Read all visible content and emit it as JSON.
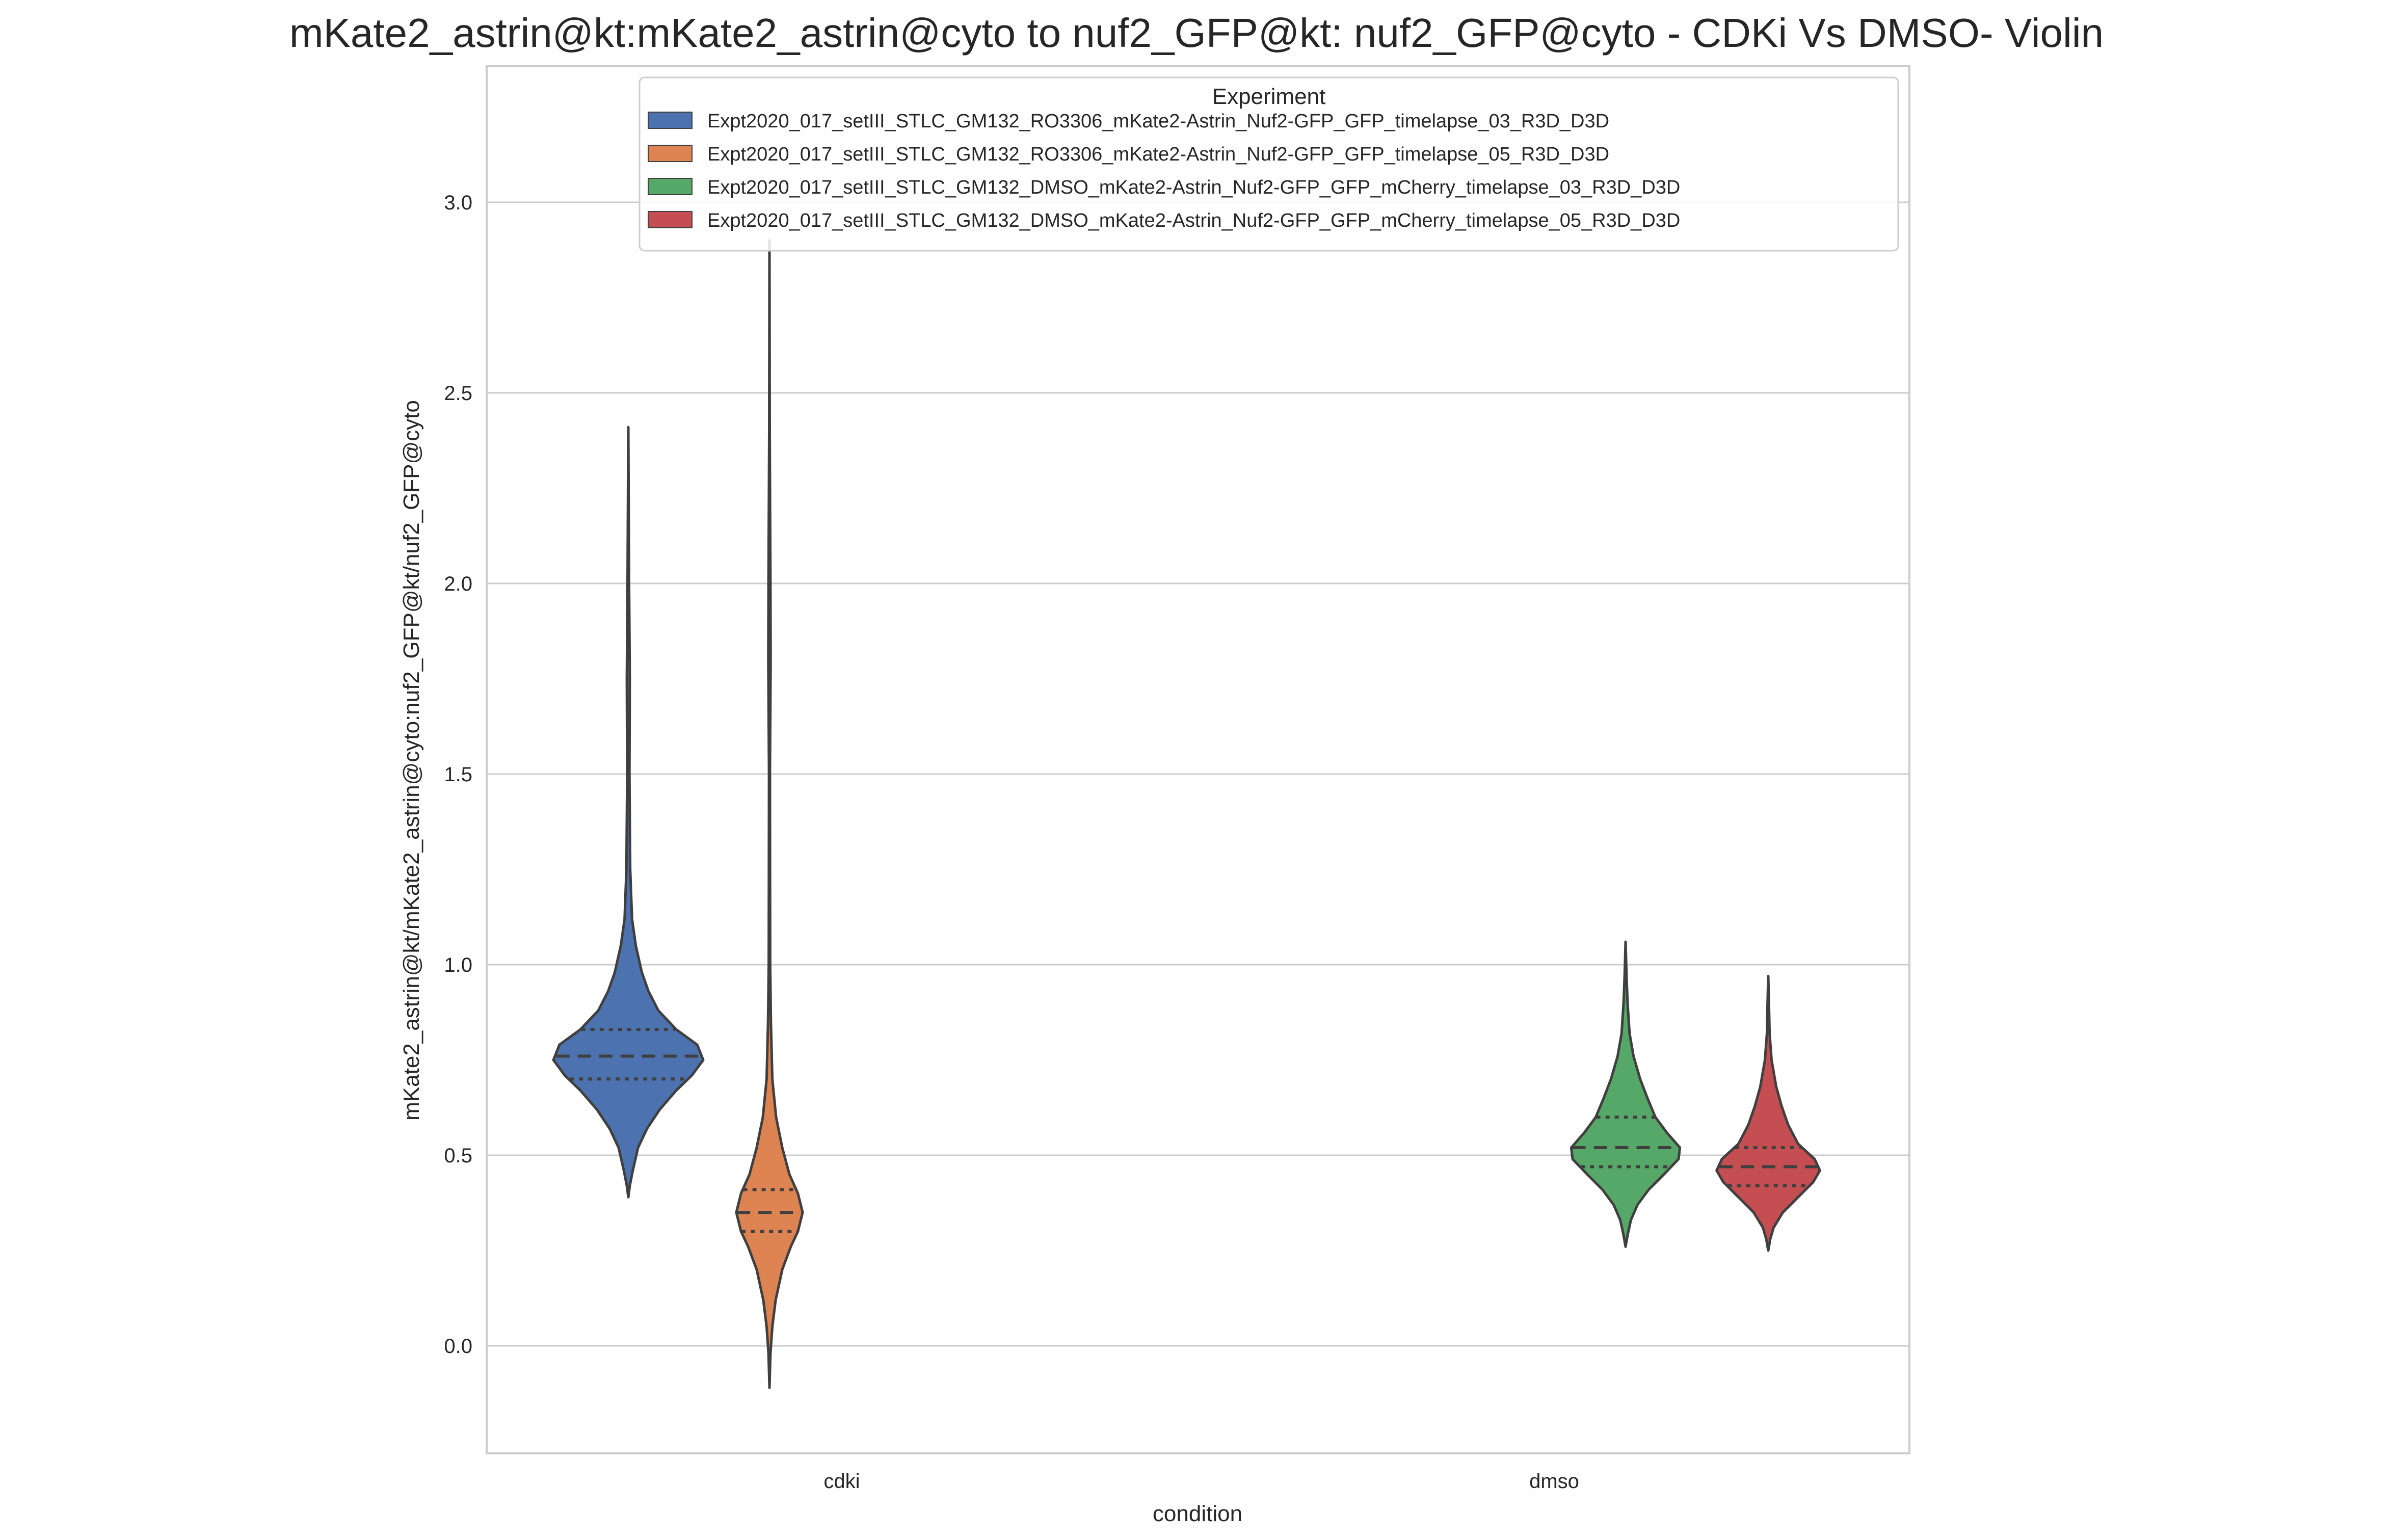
{
  "chart_data": {
    "type": "violin",
    "title": "mKate2_astrin@kt:mKate2_astrin@cyto to nuf2_GFP@kt: nuf2_GFP@cyto - CDKi Vs DMSO- Violin",
    "xlabel": "condition",
    "ylabel": "mKate2_astrin@kt/mKate2_astrin@cyto:nuf2_GFP@kt/nuf2_GFP@cyto",
    "categories": [
      "cdki",
      "dmso"
    ],
    "ylim": [
      -0.28,
      3.35
    ],
    "yticks": [
      "0.0",
      "0.5",
      "1.0",
      "1.5",
      "2.0",
      "2.5",
      "3.0"
    ],
    "grid": true,
    "legend": {
      "title": "Experiment",
      "placement": "top-right"
    },
    "series": [
      {
        "name": "Expt2020_017_setIII_STLC_GM132_RO3306_mKate2-Astrin_Nuf2-GFP_GFP_timelapse_03_R3D_D3D",
        "color": "#4c72b0",
        "category": "cdki",
        "min": 0.39,
        "max": 2.41,
        "q1": 0.7,
        "median": 0.76,
        "q3": 0.83,
        "profile": [
          [
            0.39,
            0.0
          ],
          [
            0.42,
            0.02
          ],
          [
            0.46,
            0.06
          ],
          [
            0.52,
            0.13
          ],
          [
            0.57,
            0.25
          ],
          [
            0.62,
            0.42
          ],
          [
            0.67,
            0.64
          ],
          [
            0.71,
            0.85
          ],
          [
            0.75,
            1.0
          ],
          [
            0.79,
            0.92
          ],
          [
            0.83,
            0.64
          ],
          [
            0.88,
            0.4
          ],
          [
            0.93,
            0.27
          ],
          [
            0.98,
            0.18
          ],
          [
            1.05,
            0.1
          ],
          [
            1.12,
            0.05
          ],
          [
            1.25,
            0.025
          ],
          [
            1.5,
            0.015
          ],
          [
            1.75,
            0.02
          ],
          [
            2.0,
            0.01
          ],
          [
            2.41,
            0.0
          ]
        ]
      },
      {
        "name": "Expt2020_017_setIII_STLC_GM132_RO3306_mKate2-Astrin_Nuf2-GFP_GFP_timelapse_05_R3D_D3D",
        "color": "#dd8452",
        "category": "cdki",
        "min": -0.11,
        "max": 2.9,
        "q1": 0.3,
        "median": 0.35,
        "q3": 0.41,
        "profile": [
          [
            -0.11,
            0.0
          ],
          [
            -0.02,
            0.02
          ],
          [
            0.05,
            0.06
          ],
          [
            0.12,
            0.13
          ],
          [
            0.2,
            0.27
          ],
          [
            0.26,
            0.45
          ],
          [
            0.3,
            0.6
          ],
          [
            0.35,
            0.7
          ],
          [
            0.4,
            0.6
          ],
          [
            0.45,
            0.42
          ],
          [
            0.52,
            0.27
          ],
          [
            0.6,
            0.14
          ],
          [
            0.7,
            0.06
          ],
          [
            0.85,
            0.03
          ],
          [
            1.0,
            0.015
          ],
          [
            1.5,
            0.01
          ],
          [
            1.8,
            0.025
          ],
          [
            2.0,
            0.02
          ],
          [
            2.4,
            0.005
          ],
          [
            2.9,
            0.0
          ]
        ]
      },
      {
        "name": "Expt2020_017_setIII_STLC_GM132_DMSO_mKate2-Astrin_Nuf2-GFP_GFP_mCherry_timelapse_03_R3D_D3D",
        "color": "#55a868",
        "category": "dmso",
        "min": 0.26,
        "max": 1.06,
        "q1": 0.47,
        "median": 0.52,
        "q3": 0.6,
        "profile": [
          [
            0.26,
            0.0
          ],
          [
            0.29,
            0.03
          ],
          [
            0.33,
            0.08
          ],
          [
            0.37,
            0.18
          ],
          [
            0.41,
            0.35
          ],
          [
            0.45,
            0.58
          ],
          [
            0.49,
            0.8
          ],
          [
            0.52,
            0.82
          ],
          [
            0.56,
            0.62
          ],
          [
            0.6,
            0.45
          ],
          [
            0.65,
            0.33
          ],
          [
            0.7,
            0.22
          ],
          [
            0.76,
            0.12
          ],
          [
            0.82,
            0.06
          ],
          [
            0.9,
            0.03
          ],
          [
            0.97,
            0.015
          ],
          [
            1.06,
            0.0
          ]
        ]
      },
      {
        "name": "Expt2020_017_setIII_STLC_GM132_DMSO_mKate2-Astrin_Nuf2-GFP_GFP_mCherry_timelapse_05_R3D_D3D",
        "color": "#c44e52",
        "category": "dmso",
        "min": 0.25,
        "max": 0.97,
        "q1": 0.42,
        "median": 0.47,
        "q3": 0.52,
        "profile": [
          [
            0.25,
            0.0
          ],
          [
            0.28,
            0.03
          ],
          [
            0.31,
            0.08
          ],
          [
            0.35,
            0.22
          ],
          [
            0.39,
            0.45
          ],
          [
            0.43,
            0.68
          ],
          [
            0.46,
            0.78
          ],
          [
            0.49,
            0.7
          ],
          [
            0.53,
            0.45
          ],
          [
            0.58,
            0.3
          ],
          [
            0.63,
            0.2
          ],
          [
            0.68,
            0.12
          ],
          [
            0.75,
            0.05
          ],
          [
            0.82,
            0.02
          ],
          [
            0.9,
            0.01
          ],
          [
            0.97,
            0.0
          ]
        ]
      }
    ]
  }
}
